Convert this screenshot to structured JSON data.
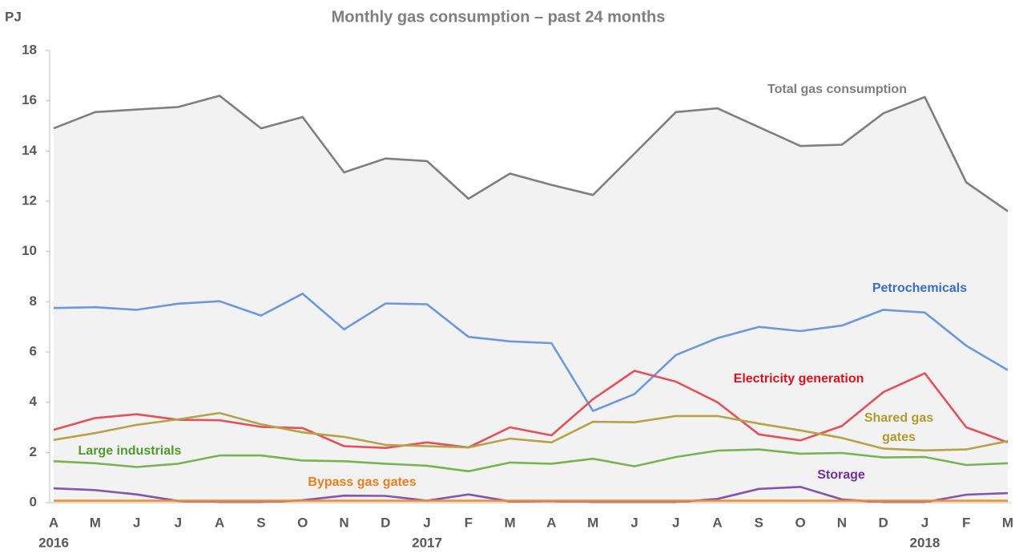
{
  "chart_data": {
    "type": "line",
    "title": "Monthly gas consumption – past 24 months",
    "y_label": "PJ",
    "categories": [
      "A",
      "M",
      "J",
      "J",
      "A",
      "S",
      "O",
      "N",
      "D",
      "J",
      "F",
      "M",
      "A",
      "M",
      "J",
      "J",
      "A",
      "S",
      "O",
      "N",
      "D",
      "J",
      "F",
      "M"
    ],
    "year_labels": [
      "2016",
      null,
      null,
      null,
      null,
      null,
      null,
      null,
      null,
      "2017",
      null,
      null,
      null,
      null,
      null,
      null,
      null,
      null,
      null,
      null,
      null,
      "2018",
      null,
      null
    ],
    "ylim": [
      0,
      18
    ],
    "yticks": [
      0,
      2,
      4,
      6,
      8,
      10,
      12,
      14,
      16,
      18
    ],
    "grid": false,
    "series": [
      {
        "name": "Total gas consumption",
        "color": "#7f7f7f",
        "label_color": "#7f7f7f",
        "fill": "#f2f2f2",
        "values": [
          14.9,
          15.55,
          15.65,
          15.75,
          16.2,
          14.9,
          15.35,
          13.15,
          13.7,
          13.6,
          12.1,
          13.1,
          12.65,
          12.25,
          13.9,
          15.55,
          15.7,
          14.95,
          14.2,
          14.25,
          15.5,
          16.15,
          12.75,
          11.6
        ]
      },
      {
        "name": "Petrochemicals",
        "color": "#6f98dc",
        "label_color": "#3a6cc8",
        "values": [
          7.75,
          7.78,
          7.68,
          7.92,
          8.02,
          7.45,
          8.32,
          6.9,
          7.93,
          7.9,
          6.6,
          6.42,
          6.35,
          3.65,
          4.32,
          5.88,
          6.55,
          7.0,
          6.83,
          7.05,
          7.68,
          7.57,
          6.25,
          5.28
        ]
      },
      {
        "name": "Electricity generation",
        "color": "#e5505a",
        "label_color": "#e0101a",
        "values": [
          2.9,
          3.37,
          3.52,
          3.3,
          3.28,
          3.02,
          2.97,
          2.25,
          2.18,
          2.4,
          2.2,
          3.0,
          2.68,
          4.12,
          5.25,
          4.82,
          4.0,
          2.72,
          2.48,
          3.05,
          4.4,
          5.15,
          3.0,
          2.4
        ]
      },
      {
        "name": "Shared gas gates",
        "color": "#b5a347",
        "label_color": "#b09a30",
        "values": [
          2.5,
          2.77,
          3.1,
          3.32,
          3.57,
          3.12,
          2.8,
          2.62,
          2.3,
          2.25,
          2.2,
          2.55,
          2.4,
          3.22,
          3.2,
          3.45,
          3.45,
          3.15,
          2.88,
          2.58,
          2.15,
          2.08,
          2.12,
          2.45
        ]
      },
      {
        "name": "Large industrials",
        "color": "#77b451",
        "label_color": "#4e9a2a",
        "values": [
          1.65,
          1.57,
          1.42,
          1.55,
          1.88,
          1.88,
          1.68,
          1.65,
          1.55,
          1.47,
          1.25,
          1.6,
          1.55,
          1.75,
          1.45,
          1.82,
          2.07,
          2.12,
          1.95,
          1.98,
          1.8,
          1.82,
          1.5,
          1.57
        ]
      },
      {
        "name": "Storage",
        "color": "#8454b0",
        "label_color": "#7030a0",
        "values": [
          0.57,
          0.5,
          0.33,
          0.07,
          0.02,
          0.02,
          0.1,
          0.28,
          0.27,
          0.08,
          0.33,
          0.05,
          0.07,
          0.02,
          0.02,
          0.02,
          0.15,
          0.55,
          0.63,
          0.13,
          0.02,
          0.02,
          0.32,
          0.38
        ]
      },
      {
        "name": "Bypass gas gates",
        "color": "#f28c28",
        "label_color": "#ed7d1f",
        "values": [
          0.08,
          0.08,
          0.08,
          0.08,
          0.08,
          0.08,
          0.08,
          0.08,
          0.08,
          0.08,
          0.08,
          0.08,
          0.08,
          0.08,
          0.08,
          0.08,
          0.08,
          0.08,
          0.08,
          0.08,
          0.08,
          0.08,
          0.08,
          0.08
        ]
      }
    ]
  }
}
